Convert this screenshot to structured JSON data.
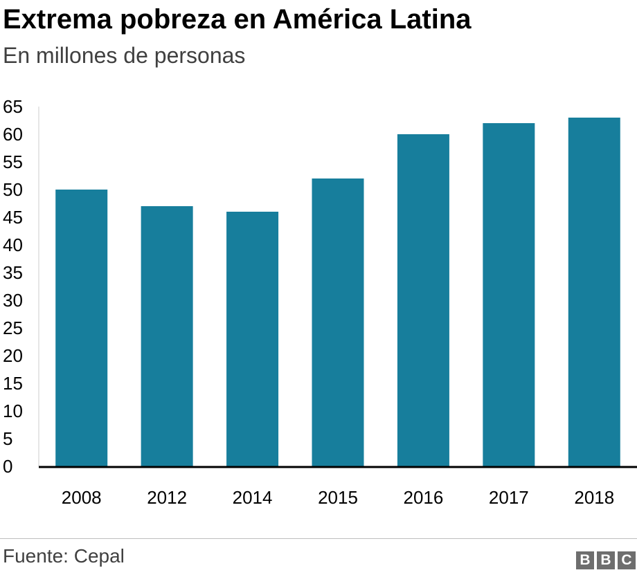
{
  "title": "Extrema pobreza en América Latina",
  "subtitle": "En millones de personas",
  "source": "Fuente: Cepal",
  "logo": [
    "B",
    "B",
    "C"
  ],
  "colors": {
    "bar": "#177e9c",
    "axis": "#000000",
    "grid": "#cccccc"
  },
  "chart_data": {
    "type": "bar",
    "title": "Extrema pobreza en América Latina",
    "subtitle": "En millones de personas",
    "xlabel": "",
    "ylabel": "",
    "categories": [
      "2008",
      "2012",
      "2014",
      "2015",
      "2016",
      "2017",
      "2018"
    ],
    "values": [
      50,
      47,
      46,
      52,
      60,
      62,
      63
    ],
    "ylim": [
      0,
      65
    ],
    "yticks": [
      0,
      5,
      10,
      15,
      20,
      25,
      30,
      35,
      40,
      45,
      50,
      55,
      60,
      65
    ],
    "grid": false,
    "legend": "none"
  }
}
